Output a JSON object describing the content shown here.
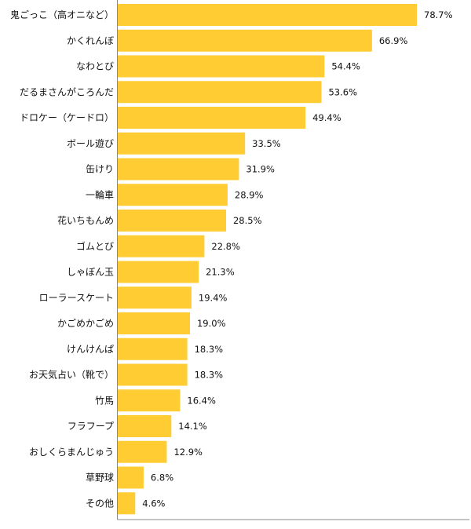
{
  "chart_data": {
    "type": "bar",
    "orientation": "horizontal",
    "categories": [
      "鬼ごっこ（高オニなど）",
      "かくれんぼ",
      "なわとび",
      "だるまさんがころんだ",
      "ドロケー（ケードロ）",
      "ボール遊び",
      "缶けり",
      "一輪車",
      "花いちもんめ",
      "ゴムとび",
      "しゃぼん玉",
      "ローラースケート",
      "かごめかごめ",
      "けんけんぱ",
      "お天気占い（靴で）",
      "竹馬",
      "フラフープ",
      "おしくらまんじゅう",
      "草野球",
      "その他"
    ],
    "values": [
      78.7,
      66.9,
      54.4,
      53.6,
      49.4,
      33.5,
      31.9,
      28.9,
      28.5,
      22.8,
      21.3,
      19.4,
      19.0,
      18.3,
      18.3,
      16.4,
      14.1,
      12.9,
      6.8,
      4.6
    ],
    "value_labels": [
      "78.7%",
      "66.9%",
      "54.4%",
      "53.6%",
      "49.4%",
      "33.5%",
      "31.9%",
      "28.9%",
      "28.5%",
      "22.8%",
      "21.3%",
      "19.4%",
      "19.0%",
      "18.3%",
      "18.3%",
      "16.4%",
      "14.1%",
      "12.9%",
      "6.8%",
      "4.6%"
    ],
    "unit": "%",
    "xlim": [
      0,
      100
    ],
    "grid": false,
    "legend": "none",
    "bar_color": "#ffcc33",
    "axis_color": "#888888"
  }
}
